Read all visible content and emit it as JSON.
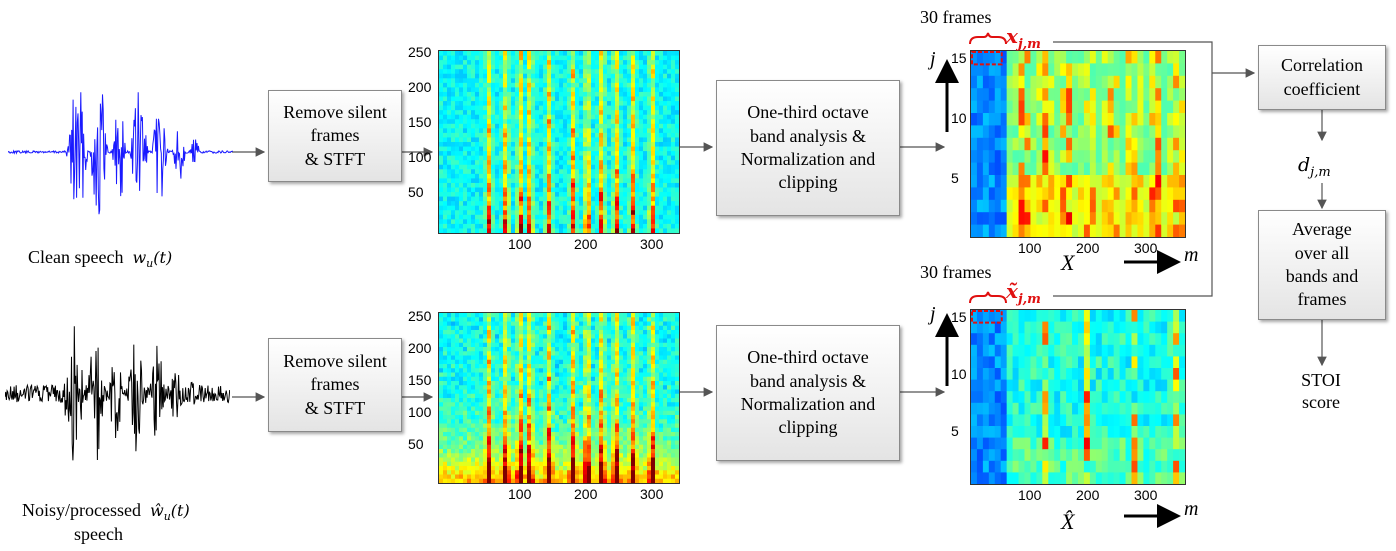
{
  "labels": {
    "clean_speech": "Clean speech",
    "clean_signal": "wu(t)",
    "noisy_speech": "Noisy/processed",
    "noisy_signal": "ŵu(t)",
    "noisy_speech_line2": "speech"
  },
  "boxes": {
    "remove_silent_top": "Remove silent\nframes\n& STFT",
    "remove_silent_bottom": "Remove silent\nframes\n& STFT",
    "octave_top": "One-third octave\nband analysis &\nNormalization and\nclipping",
    "octave_bottom": "One-third octave\nband analysis &\nNormalization and\nclipping",
    "correlation": "Correlation\ncoefficient",
    "average": "Average\nover all\nbands and\nframes"
  },
  "outputs": {
    "d_label": "dj,m",
    "stoi": "STOI\nscore"
  },
  "spectrogram": {
    "y_ticks": [
      "250",
      "200",
      "150",
      "100",
      "50"
    ],
    "x_ticks": [
      "100",
      "200",
      "300"
    ]
  },
  "band_plots": {
    "frames_label": "30 frames",
    "x_top": "xj,m",
    "x_bottom": "x̃j,m",
    "y_ticks": [
      "15",
      "10",
      "5"
    ],
    "x_ticks": [
      "100",
      "200",
      "300"
    ],
    "j_axis": "j",
    "m_axis": "m",
    "matrix_top": "X",
    "matrix_bottom": "X̂"
  },
  "colors": {
    "clean_wave": "#1a1aff",
    "noisy_wave": "#000000",
    "highlight": "#e01010",
    "arrow": "#555555"
  }
}
